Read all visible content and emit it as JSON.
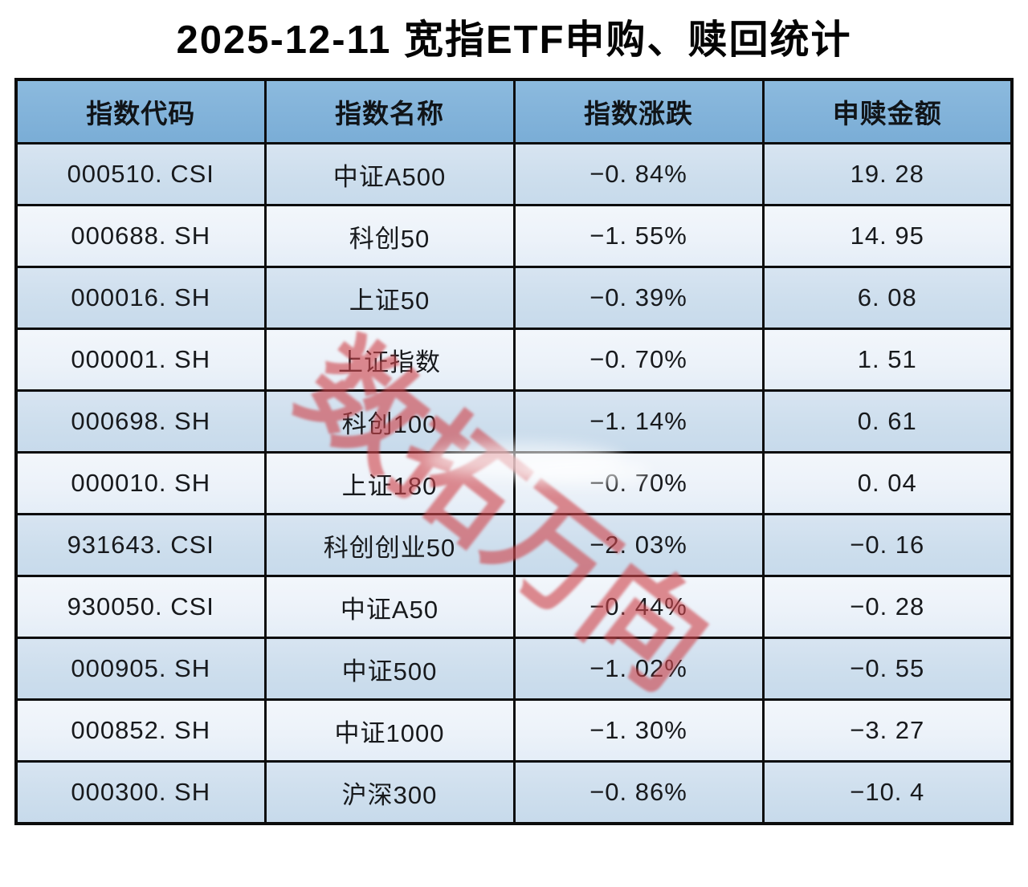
{
  "title": "2025-12-11 宽指ETF申购、赎回统计",
  "watermark": "数拓万向",
  "colors": {
    "header_bg": "#7fb1d8",
    "row_odd_bg": "#cdddec",
    "row_even_bg": "#ecf2f9",
    "border": "#0c0c0c",
    "watermark_red": "#cf464c",
    "text": "#17191c",
    "page_bg": "#ffffff"
  },
  "table": {
    "columns": [
      "指数代码",
      "指数名称",
      "指数涨跌",
      "申赎金额"
    ],
    "rows": [
      {
        "code": "000510. CSI",
        "name": "中证A500",
        "change": "−0. 84%",
        "amount": "19. 28"
      },
      {
        "code": "000688. SH",
        "name": "科创50",
        "change": "−1. 55%",
        "amount": "14. 95"
      },
      {
        "code": "000016. SH",
        "name": "上证50",
        "change": "−0. 39%",
        "amount": "6. 08"
      },
      {
        "code": "000001. SH",
        "name": "上证指数",
        "change": "−0. 70%",
        "amount": "1. 51"
      },
      {
        "code": "000698. SH",
        "name": "科创100",
        "change": "−1. 14%",
        "amount": "0. 61"
      },
      {
        "code": "000010. SH",
        "name": "上证180",
        "change": "−0. 70%",
        "amount": "0. 04"
      },
      {
        "code": "931643. CSI",
        "name": "科创创业50",
        "change": "−2. 03%",
        "amount": "−0. 16"
      },
      {
        "code": "930050. CSI",
        "name": "中证A50",
        "change": "−0. 44%",
        "amount": "−0. 28"
      },
      {
        "code": "000905. SH",
        "name": "中证500",
        "change": "−1. 02%",
        "amount": "−0. 55"
      },
      {
        "code": "000852. SH",
        "name": "中证1000",
        "change": "−1. 30%",
        "amount": "−3. 27"
      },
      {
        "code": "000300. SH",
        "name": "沪深300",
        "change": "−0. 86%",
        "amount": "−10. 4"
      }
    ]
  },
  "chart_data": {
    "type": "table",
    "title": "2025-12-11 宽指ETF申购、赎回统计",
    "columns": [
      "指数代码",
      "指数名称",
      "指数涨跌",
      "申赎金额"
    ],
    "rows": [
      [
        "000510.CSI",
        "中证A500",
        -0.84,
        19.28
      ],
      [
        "000688.SH",
        "科创50",
        -1.55,
        14.95
      ],
      [
        "000016.SH",
        "上证50",
        -0.39,
        6.08
      ],
      [
        "000001.SH",
        "上证指数",
        -0.7,
        1.51
      ],
      [
        "000698.SH",
        "科创100",
        -1.14,
        0.61
      ],
      [
        "000010.SH",
        "上证180",
        -0.7,
        0.04
      ],
      [
        "931643.CSI",
        "科创创业50",
        -2.03,
        -0.16
      ],
      [
        "930050.CSI",
        "中证A50",
        -0.44,
        -0.28
      ],
      [
        "000905.SH",
        "中证500",
        -1.02,
        -0.55
      ],
      [
        "000852.SH",
        "中证1000",
        -1.3,
        -3.27
      ],
      [
        "000300.SH",
        "沪深300",
        -0.86,
        -10.4
      ]
    ],
    "change_unit": "%"
  }
}
